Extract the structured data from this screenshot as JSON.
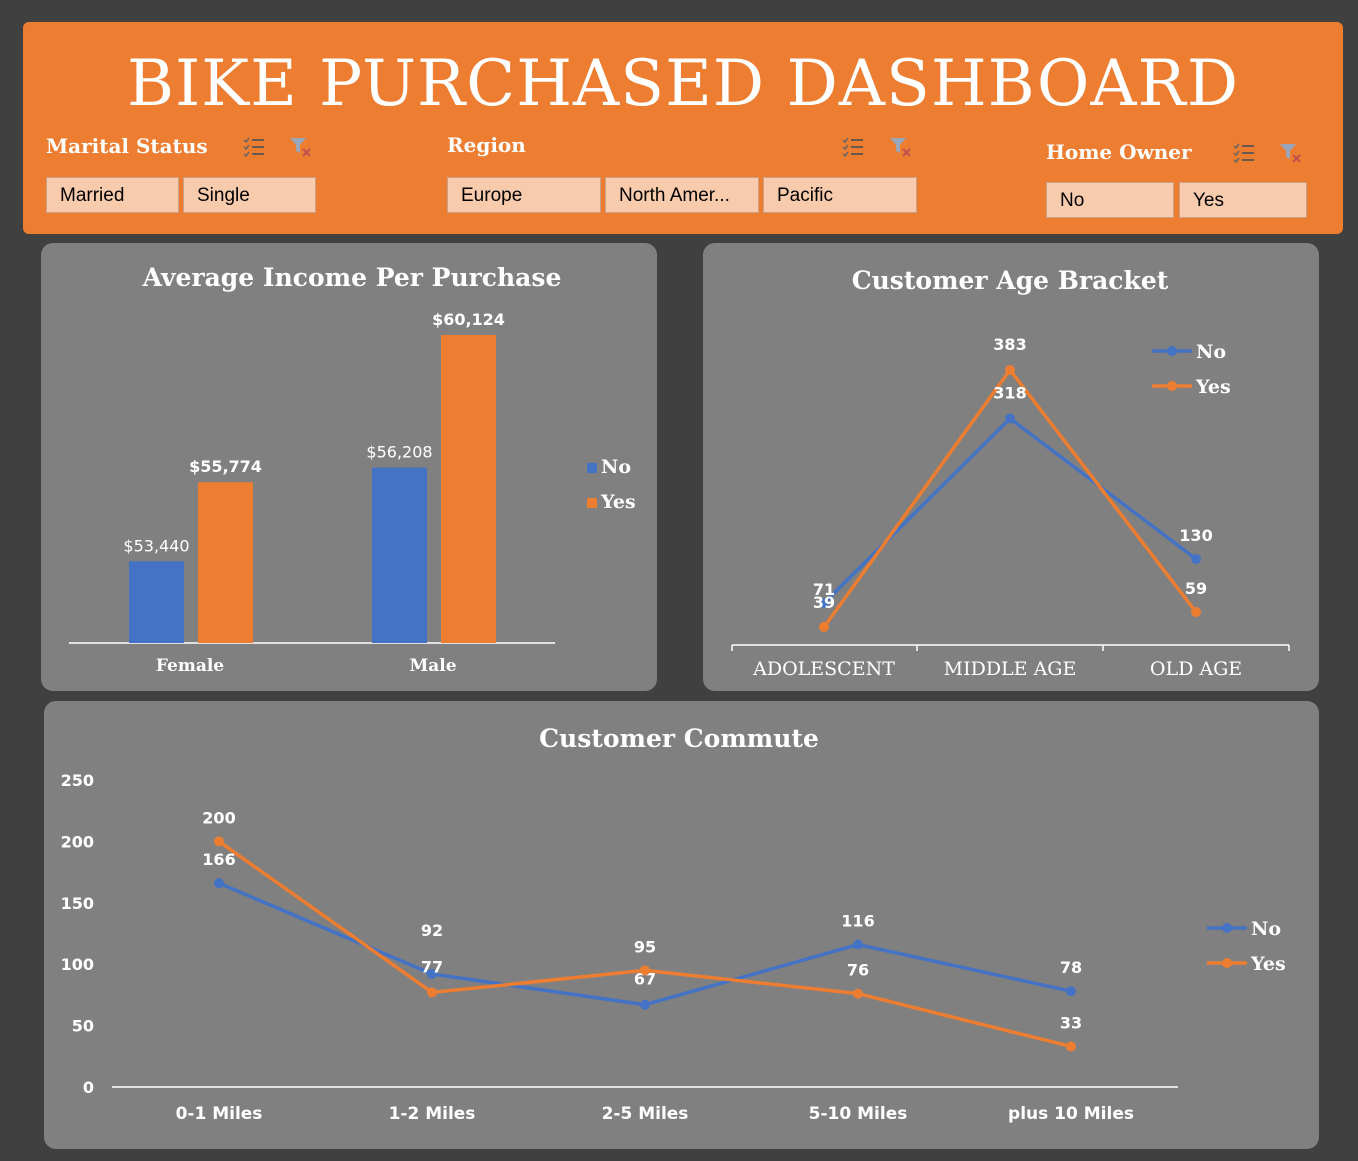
{
  "dashboard": {
    "title": "BIKE PURCHASED DASHBOARD"
  },
  "slicers": {
    "marital": {
      "label": "Marital Status",
      "options": [
        "Married",
        "Single"
      ]
    },
    "region": {
      "label": "Region",
      "options": [
        "Europe",
        "North Amer...",
        "Pacific"
      ]
    },
    "home": {
      "label": "Home Owner",
      "options": [
        "No",
        "Yes"
      ]
    }
  },
  "colors": {
    "no": "#4472C4",
    "yes": "#ED7D31",
    "header": "#ED7D31",
    "panel": "#808080"
  },
  "chart_data": [
    {
      "type": "bar",
      "title": "Average Income Per Purchase",
      "categories": [
        "Female",
        "Male"
      ],
      "series": [
        {
          "name": "No",
          "values": [
            53440,
            56208
          ],
          "labels": [
            "$53,440",
            "$56,208"
          ]
        },
        {
          "name": "Yes",
          "values": [
            55774,
            60124
          ],
          "labels": [
            "$55,774",
            "$60,124"
          ]
        }
      ],
      "legend": "right"
    },
    {
      "type": "line",
      "title": "Customer Age Bracket",
      "categories": [
        "ADOLESCENT",
        "MIDDLE AGE",
        "OLD AGE"
      ],
      "series": [
        {
          "name": "No",
          "values": [
            71,
            318,
            130
          ]
        },
        {
          "name": "Yes",
          "values": [
            39,
            383,
            59
          ]
        }
      ],
      "legend": "top-right"
    },
    {
      "type": "line",
      "title": "Customer Commute",
      "categories": [
        "0-1 Miles",
        "1-2 Miles",
        "2-5 Miles",
        "5-10 Miles",
        "plus 10 Miles"
      ],
      "series": [
        {
          "name": "No",
          "values": [
            166,
            92,
            67,
            116,
            78
          ]
        },
        {
          "name": "Yes",
          "values": [
            200,
            77,
            95,
            76,
            33
          ]
        }
      ],
      "ylim": [
        0,
        250
      ],
      "yticks": [
        "0",
        "50",
        "100",
        "150",
        "200",
        "250"
      ],
      "legend": "right"
    }
  ]
}
